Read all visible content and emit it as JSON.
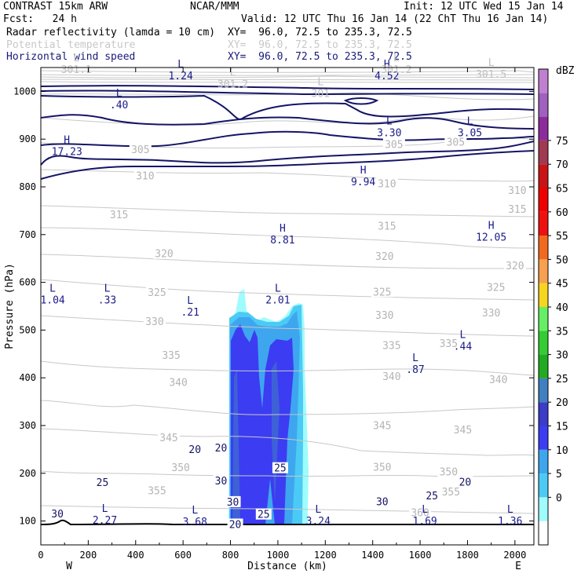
{
  "header": {
    "model": "CONTRAST 15km ARW",
    "org": "NCAR/MMM",
    "init": "Init: 12 UTC Wed 15 Jan 14",
    "fcst": "Fcst:   24 h",
    "valid": "Valid: 12 UTC Thu 16 Jan 14 (22 ChT Thu 16 Jan 14)",
    "fields": [
      {
        "name": "Radar reflectivity (lamda = 10 cm)",
        "xy": "XY=  96.0, 72.5 to 235.3, 72.5",
        "color": "#000000"
      },
      {
        "name": "Potential temperature",
        "xy": "XY=  96.0, 72.5 to 235.3, 72.5",
        "color": "#c8c8c8"
      },
      {
        "name": "Horizontal wind speed",
        "xy": "XY=  96.0, 72.5 to 235.3, 72.5",
        "color": "#1a1a7a"
      }
    ]
  },
  "chart_data": {
    "type": "cross-section contour",
    "xlabel": "Distance (km)",
    "ylabel": "Pressure (hPa)",
    "xlim": [
      0,
      2080
    ],
    "ylim": [
      1050,
      50
    ],
    "x_ticks": [
      "0",
      "200",
      "400",
      "600",
      "800",
      "1000",
      "1200",
      "1400",
      "1600",
      "1800",
      "2000"
    ],
    "y_ticks": [
      "100",
      "200",
      "300",
      "400",
      "500",
      "600",
      "700",
      "800",
      "900",
      "1000"
    ],
    "x_end_labels": {
      "west": "W",
      "east": "E"
    },
    "colorbar": {
      "unit": "dBZ",
      "ticks": [
        "0",
        "5",
        "10",
        "15",
        "20",
        "25",
        "30",
        "35",
        "40",
        "45",
        "50",
        "55",
        "60",
        "65",
        "70",
        "75"
      ],
      "colors": [
        "#ffffff",
        "#9ffcfc",
        "#4ccaf6",
        "#3ea6ef",
        "#3c3cf3",
        "#3c3cc8",
        "#4080c0",
        "#22aa22",
        "#33cc33",
        "#66ee66",
        "#f6d51f",
        "#f6a050",
        "#f36a1f",
        "#ee1111",
        "#ee0000",
        "#c81414",
        "#a03a50",
        "#8c2c9c",
        "#a060c0",
        "#c080d0"
      ]
    },
    "theta_labels": [
      {
        "text": "360",
        "x": 1600,
        "p": 117
      },
      {
        "text": "355",
        "x": 490,
        "p": 163
      },
      {
        "text": "355",
        "x": 1730,
        "p": 160
      },
      {
        "text": "350",
        "x": 590,
        "p": 211
      },
      {
        "text": "350",
        "x": 1440,
        "p": 212
      },
      {
        "text": "350",
        "x": 1720,
        "p": 202
      },
      {
        "text": "345",
        "x": 540,
        "p": 274
      },
      {
        "text": "345",
        "x": 1440,
        "p": 299
      },
      {
        "text": "345",
        "x": 1780,
        "p": 290
      },
      {
        "text": "340",
        "x": 580,
        "p": 390
      },
      {
        "text": "340",
        "x": 1480,
        "p": 402
      },
      {
        "text": "340",
        "x": 1930,
        "p": 395
      },
      {
        "text": "335",
        "x": 550,
        "p": 446
      },
      {
        "text": "335",
        "x": 1480,
        "p": 467
      },
      {
        "text": "335",
        "x": 1720,
        "p": 471
      },
      {
        "text": "330",
        "x": 480,
        "p": 517
      },
      {
        "text": "330",
        "x": 1450,
        "p": 530
      },
      {
        "text": "330",
        "x": 1900,
        "p": 535
      },
      {
        "text": "325",
        "x": 490,
        "p": 578
      },
      {
        "text": "325",
        "x": 1440,
        "p": 579
      },
      {
        "text": "325",
        "x": 1920,
        "p": 589
      },
      {
        "text": "320",
        "x": 520,
        "p": 659
      },
      {
        "text": "320",
        "x": 1450,
        "p": 654
      },
      {
        "text": "320",
        "x": 2000,
        "p": 634
      },
      {
        "text": "315",
        "x": 330,
        "p": 741
      },
      {
        "text": "315",
        "x": 1460,
        "p": 717
      },
      {
        "text": "315",
        "x": 2010,
        "p": 752
      },
      {
        "text": "310",
        "x": 440,
        "p": 822
      },
      {
        "text": "310",
        "x": 1460,
        "p": 806
      },
      {
        "text": "310",
        "x": 2010,
        "p": 792
      },
      {
        "text": "305",
        "x": 420,
        "p": 877
      },
      {
        "text": "305",
        "x": 1490,
        "p": 888
      },
      {
        "text": "305",
        "x": 1750,
        "p": 893
      }
    ],
    "wind_labels": [
      {
        "text": "20",
        "x": 820,
        "p": 92
      },
      {
        "text": "25",
        "x": 940,
        "p": 113
      },
      {
        "text": "30",
        "x": 70,
        "p": 114
      },
      {
        "text": "30",
        "x": 810,
        "p": 139
      },
      {
        "text": "30",
        "x": 1440,
        "p": 140
      },
      {
        "text": "25",
        "x": 260,
        "p": 180
      },
      {
        "text": "30",
        "x": 760,
        "p": 183
      },
      {
        "text": "25",
        "x": 1650,
        "p": 152
      },
      {
        "text": "20",
        "x": 1790,
        "p": 181
      },
      {
        "text": "25",
        "x": 1010,
        "p": 210
      },
      {
        "text": "20",
        "x": 650,
        "p": 249
      },
      {
        "text": "20",
        "x": 760,
        "p": 252
      }
    ],
    "extrema": [
      {
        "type": "L",
        "value": "2.27",
        "x": 270,
        "p": 96
      },
      {
        "type": "L",
        "value": "3.68",
        "x": 650,
        "p": 93
      },
      {
        "type": "L",
        "value": "3.24",
        "x": 1170,
        "p": 94
      },
      {
        "type": "L",
        "value": "1.69",
        "x": 1620,
        "p": 94
      },
      {
        "type": "L",
        "value": "1.36",
        "x": 1980,
        "p": 94
      },
      {
        "type": "L",
        "value": ".87",
        "x": 1580,
        "p": 412
      },
      {
        "type": "L",
        "value": ".44",
        "x": 1780,
        "p": 460
      },
      {
        "type": "L",
        "value": ".21",
        "x": 630,
        "p": 532
      },
      {
        "type": "L",
        "value": "1.04",
        "x": 50,
        "p": 557
      },
      {
        "type": "L",
        "value": ".33",
        "x": 280,
        "p": 557
      },
      {
        "type": "L",
        "value": "2.01",
        "x": 1000,
        "p": 557
      },
      {
        "type": "H",
        "value": "8.81",
        "x": 1020,
        "p": 683
      },
      {
        "type": "H",
        "value": "12.05",
        "x": 1900,
        "p": 689
      },
      {
        "type": "H",
        "value": "9.94",
        "x": 1360,
        "p": 805
      },
      {
        "type": "H",
        "value": "17.23",
        "x": 110,
        "p": 868
      },
      {
        "type": "L",
        "value": "3.30",
        "x": 1470,
        "p": 908
      },
      {
        "type": "L",
        "value": "3.05",
        "x": 1810,
        "p": 908
      },
      {
        "type": "L",
        "value": ".40",
        "x": 330,
        "p": 966
      },
      {
        "type": "L",
        "value": "1.24",
        "x": 590,
        "p": 1027
      },
      {
        "type": "H",
        "value": "4.52",
        "x": 1460,
        "p": 1027
      }
    ],
    "theta_extrema": [
      {
        "type": "L",
        "value": "301.1",
        "x": 150,
        "p": 1040
      },
      {
        "type": "L",
        "value": "301.2",
        "x": 810,
        "p": 1010
      },
      {
        "type": "L",
        "value": "301",
        "x": 1180,
        "p": 990
      },
      {
        "type": "L",
        "value": "301.2",
        "x": 1500,
        "p": 1040
      },
      {
        "type": "L",
        "value": "301.5",
        "x": 1900,
        "p": 1030
      }
    ]
  }
}
